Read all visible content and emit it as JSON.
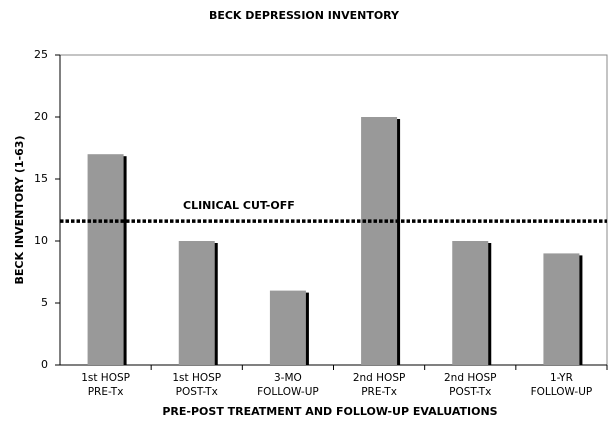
{
  "chart_data": {
    "type": "bar",
    "title": "BECK DEPRESSION INVENTORY",
    "y_label": "BECK INVENTORY (1-63)",
    "x_label": "PRE-POST TREATMENT AND FOLLOW-UP EVALUATIONS",
    "categories": [
      "1st HOSP PRE-Tx",
      "1st HOSP POST-Tx",
      "3-MO FOLLOW-UP",
      "2nd HOSP PRE-Tx",
      "2nd HOSP POST-Tx",
      "1-YR FOLLOW-UP"
    ],
    "values": [
      17,
      10,
      6,
      20,
      10,
      9
    ],
    "color": "#999999",
    "shadow_color": "#000000",
    "ylim": [
      0,
      25
    ],
    "yticks": [
      0,
      5,
      10,
      15,
      20,
      25
    ],
    "grid": false,
    "reference_line": {
      "value": 11.6,
      "label": "CLINICAL CUT-OFF"
    }
  }
}
